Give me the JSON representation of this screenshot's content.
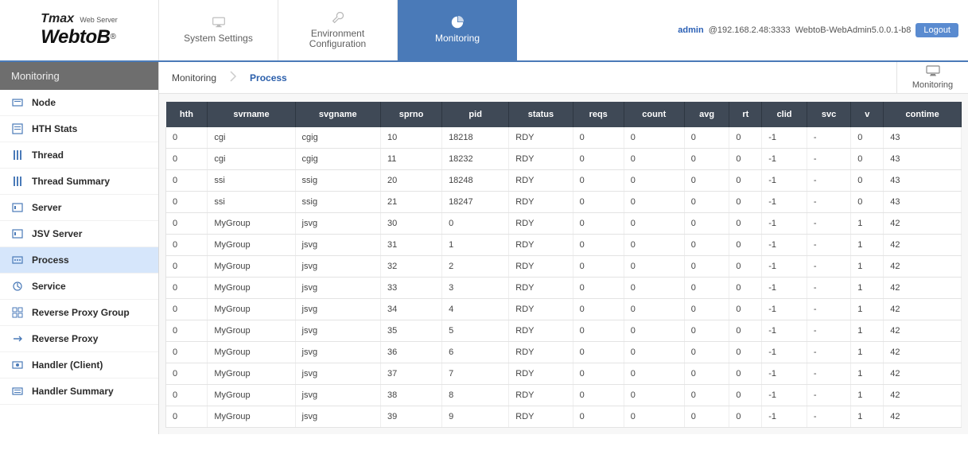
{
  "brand": {
    "tmax": "Tmax",
    "ws": "Web Server",
    "name": "WebtoB",
    "reg": "®"
  },
  "tabs": {
    "system": {
      "label": "System Settings"
    },
    "env": {
      "label": "Environment Configuration"
    },
    "monitor": {
      "label": "Monitoring"
    }
  },
  "topright": {
    "admin": "admin",
    "host": "@192.168.2.48:3333",
    "version": "WebtoB-WebAdmin5.0.0.1-b8",
    "logout": "Logout"
  },
  "sidebar": {
    "title": "Monitoring",
    "items": [
      {
        "label": "Node"
      },
      {
        "label": "HTH Stats"
      },
      {
        "label": "Thread"
      },
      {
        "label": "Thread Summary"
      },
      {
        "label": "Server"
      },
      {
        "label": "JSV Server"
      },
      {
        "label": "Process"
      },
      {
        "label": "Service"
      },
      {
        "label": "Reverse Proxy Group"
      },
      {
        "label": "Reverse Proxy"
      },
      {
        "label": "Handler (Client)"
      },
      {
        "label": "Handler Summary"
      }
    ]
  },
  "breadcrumb": {
    "root": "Monitoring",
    "current": "Process",
    "rightLabel": "Monitoring"
  },
  "table": {
    "columns": [
      "hth",
      "svrname",
      "svgname",
      "sprno",
      "pid",
      "status",
      "reqs",
      "count",
      "avg",
      "rt",
      "clid",
      "svc",
      "v",
      "contime"
    ],
    "rows": [
      [
        "0",
        "cgi",
        "cgig",
        "10",
        "18218",
        "RDY",
        "0",
        "0",
        "0",
        "0",
        "-1",
        "-",
        "0",
        "43"
      ],
      [
        "0",
        "cgi",
        "cgig",
        "11",
        "18232",
        "RDY",
        "0",
        "0",
        "0",
        "0",
        "-1",
        "-",
        "0",
        "43"
      ],
      [
        "0",
        "ssi",
        "ssig",
        "20",
        "18248",
        "RDY",
        "0",
        "0",
        "0",
        "0",
        "-1",
        "-",
        "0",
        "43"
      ],
      [
        "0",
        "ssi",
        "ssig",
        "21",
        "18247",
        "RDY",
        "0",
        "0",
        "0",
        "0",
        "-1",
        "-",
        "0",
        "43"
      ],
      [
        "0",
        "MyGroup",
        "jsvg",
        "30",
        "0",
        "RDY",
        "0",
        "0",
        "0",
        "0",
        "-1",
        "-",
        "1",
        "42"
      ],
      [
        "0",
        "MyGroup",
        "jsvg",
        "31",
        "1",
        "RDY",
        "0",
        "0",
        "0",
        "0",
        "-1",
        "-",
        "1",
        "42"
      ],
      [
        "0",
        "MyGroup",
        "jsvg",
        "32",
        "2",
        "RDY",
        "0",
        "0",
        "0",
        "0",
        "-1",
        "-",
        "1",
        "42"
      ],
      [
        "0",
        "MyGroup",
        "jsvg",
        "33",
        "3",
        "RDY",
        "0",
        "0",
        "0",
        "0",
        "-1",
        "-",
        "1",
        "42"
      ],
      [
        "0",
        "MyGroup",
        "jsvg",
        "34",
        "4",
        "RDY",
        "0",
        "0",
        "0",
        "0",
        "-1",
        "-",
        "1",
        "42"
      ],
      [
        "0",
        "MyGroup",
        "jsvg",
        "35",
        "5",
        "RDY",
        "0",
        "0",
        "0",
        "0",
        "-1",
        "-",
        "1",
        "42"
      ],
      [
        "0",
        "MyGroup",
        "jsvg",
        "36",
        "6",
        "RDY",
        "0",
        "0",
        "0",
        "0",
        "-1",
        "-",
        "1",
        "42"
      ],
      [
        "0",
        "MyGroup",
        "jsvg",
        "37",
        "7",
        "RDY",
        "0",
        "0",
        "0",
        "0",
        "-1",
        "-",
        "1",
        "42"
      ],
      [
        "0",
        "MyGroup",
        "jsvg",
        "38",
        "8",
        "RDY",
        "0",
        "0",
        "0",
        "0",
        "-1",
        "-",
        "1",
        "42"
      ],
      [
        "0",
        "MyGroup",
        "jsvg",
        "39",
        "9",
        "RDY",
        "0",
        "0",
        "0",
        "0",
        "-1",
        "-",
        "1",
        "42"
      ]
    ],
    "header_bg": "#3f4956",
    "header_fg": "#ffffff",
    "row_border": "#e3e3e3"
  },
  "colors": {
    "accent": "#4a7ab8",
    "sidebar_active": "#d6e6fb",
    "sidebar_title_bg": "#6e6e6e"
  }
}
